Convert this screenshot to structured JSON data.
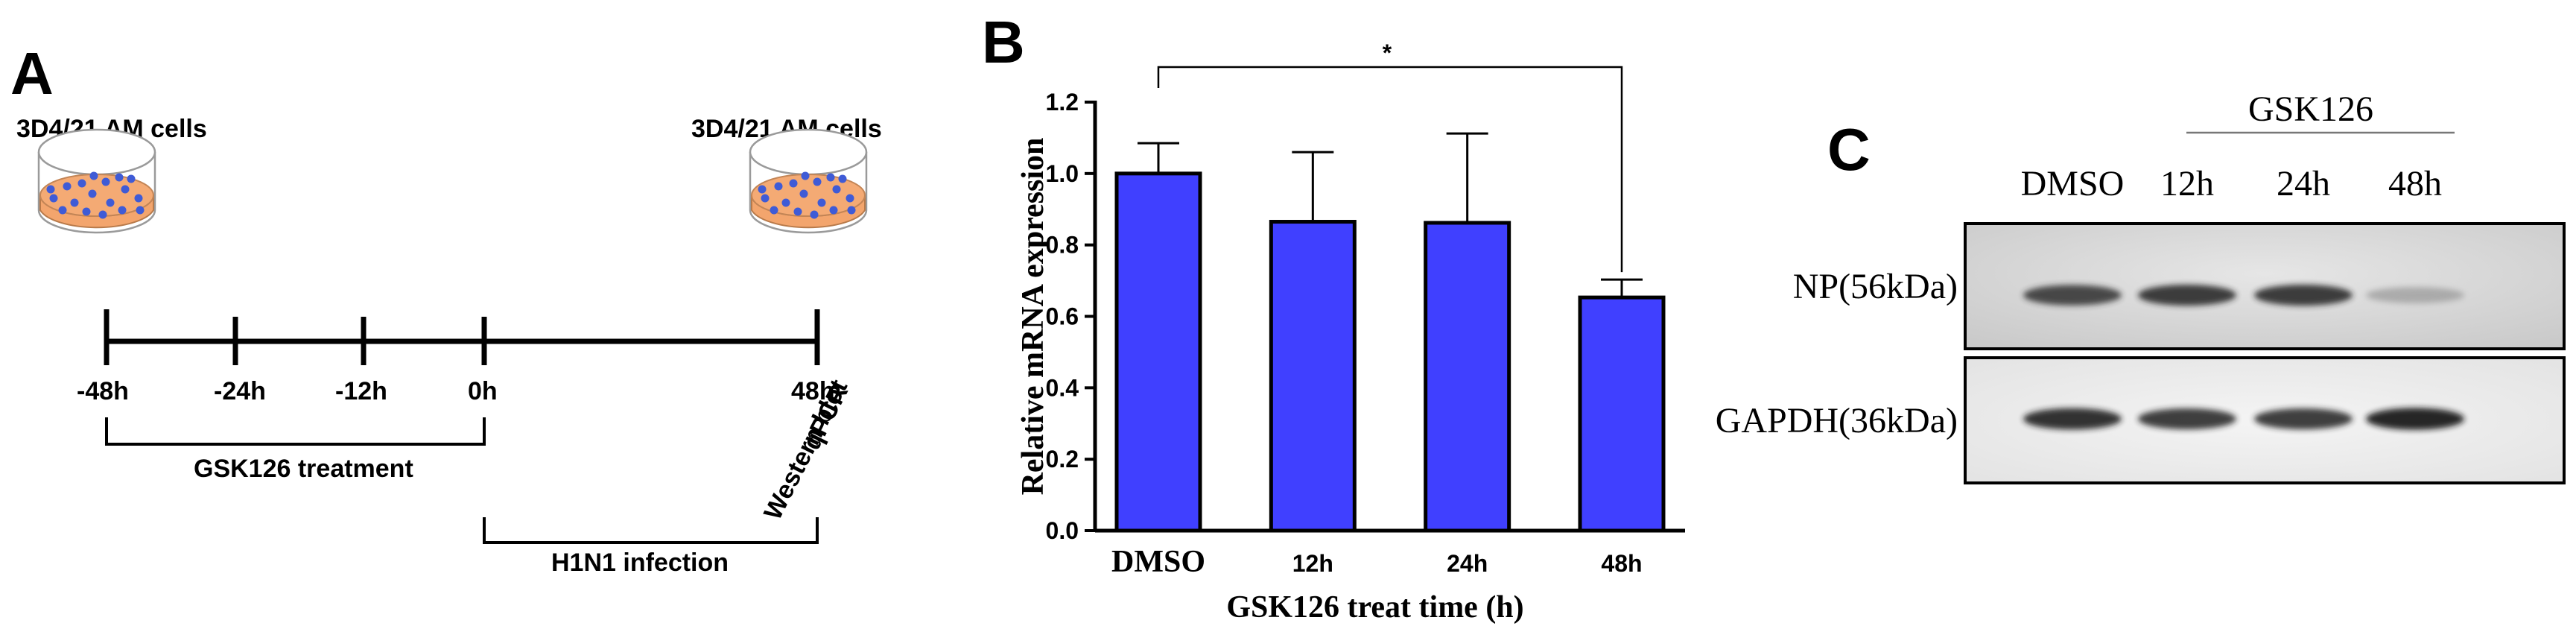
{
  "panel_a": {
    "letter": "A",
    "cells_start_label": "3D4/21 AM cells",
    "cells_end_label": "3D4/21 AM cells",
    "timeline": [
      {
        "label": "-48h",
        "hours": -48
      },
      {
        "label": "-24h",
        "hours": -24
      },
      {
        "label": "-12h",
        "hours": -12
      },
      {
        "label": "0h",
        "hours": 0
      },
      {
        "label": "48h",
        "hours": 48
      }
    ],
    "treatment_label": "GSK126 treatment",
    "infection_label": "H1N1 infection",
    "assay_line1": "qPCR",
    "assay_line2": "Western blot"
  },
  "panel_b": {
    "letter": "B",
    "significance": "*"
  },
  "chart_data": {
    "type": "bar",
    "title": "",
    "xlabel": "GSK126 treat time (h)",
    "ylabel": "Relative mRNA expression",
    "ylim": [
      0,
      1.2
    ],
    "yticks": [
      "0.0",
      "0.2",
      "0.4",
      "0.6",
      "0.8",
      "1.0",
      "1.2"
    ],
    "categories": [
      "DMSO",
      "12h",
      "24h",
      "48h"
    ],
    "values": [
      1.0,
      0.865,
      0.862,
      0.653
    ],
    "error": [
      0.085,
      0.195,
      0.25,
      0.05
    ],
    "bar_color": "#4040ff",
    "comparison": {
      "from": "DMSO",
      "to": "48h",
      "label": "*"
    }
  },
  "panel_c": {
    "letter": "C",
    "group_label": "GSK126",
    "lanes": [
      "DMSO",
      "12h",
      "24h",
      "48h"
    ],
    "rows": [
      {
        "label": "NP(56kDa)",
        "intensity": [
          0.8,
          0.85,
          0.85,
          0.3
        ]
      },
      {
        "label": "GAPDH(36kDa)",
        "intensity": [
          0.9,
          0.85,
          0.85,
          0.95
        ]
      }
    ]
  }
}
